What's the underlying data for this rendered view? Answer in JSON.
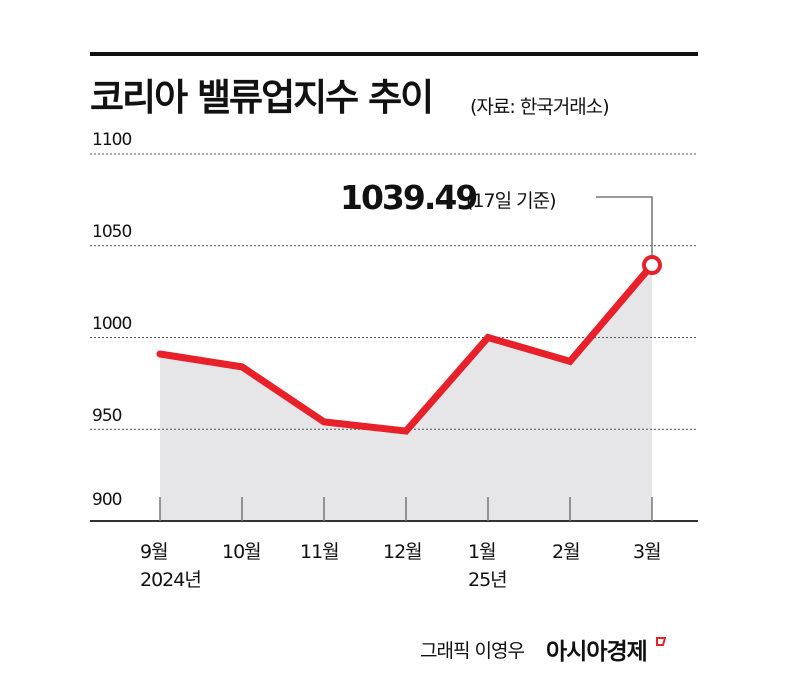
{
  "header": {
    "title": "코리아 밸류업지수 추이",
    "source": "(자료: 한국거래소)"
  },
  "callout": {
    "value": "1039.49",
    "note": "(17일 기준)"
  },
  "footer": {
    "credit": "그래픽 이영우",
    "brand": "아시아경제"
  },
  "colors": {
    "line": "#e8202a",
    "area": "#e6e6e8",
    "grid": "#555555",
    "axis": "#333333"
  },
  "chart_data": {
    "type": "line",
    "title": "코리아 밸류업지수 추이",
    "subtitle": "(자료: 한국거래소)",
    "xlabel": "",
    "ylabel": "",
    "categories": [
      "9월 2024년",
      "10월",
      "11월",
      "12월",
      "1월 25년",
      "2월",
      "3월"
    ],
    "series": [
      {
        "name": "코리아 밸류업지수",
        "values": [
          991,
          984,
          954,
          949,
          1000,
          987,
          1039.49
        ]
      }
    ],
    "yticks": [
      "1100",
      "1050",
      "1000",
      "950",
      "900"
    ],
    "ylim": [
      900,
      1100
    ],
    "grid": true,
    "legend": "none",
    "annotations": [
      {
        "x": "3월",
        "text": "1039.49 (17일 기준)"
      }
    ],
    "area_fill": true
  },
  "axis": {
    "yticks": [
      "1100",
      "1050",
      "1000",
      "950",
      "900"
    ],
    "xticks": [
      {
        "month": "9월",
        "year": "2024년"
      },
      {
        "month": "10월",
        "year": ""
      },
      {
        "month": "11월",
        "year": ""
      },
      {
        "month": "12월",
        "year": ""
      },
      {
        "month": "1월",
        "year": "25년"
      },
      {
        "month": "2월",
        "year": ""
      },
      {
        "month": "3월",
        "year": ""
      }
    ]
  }
}
